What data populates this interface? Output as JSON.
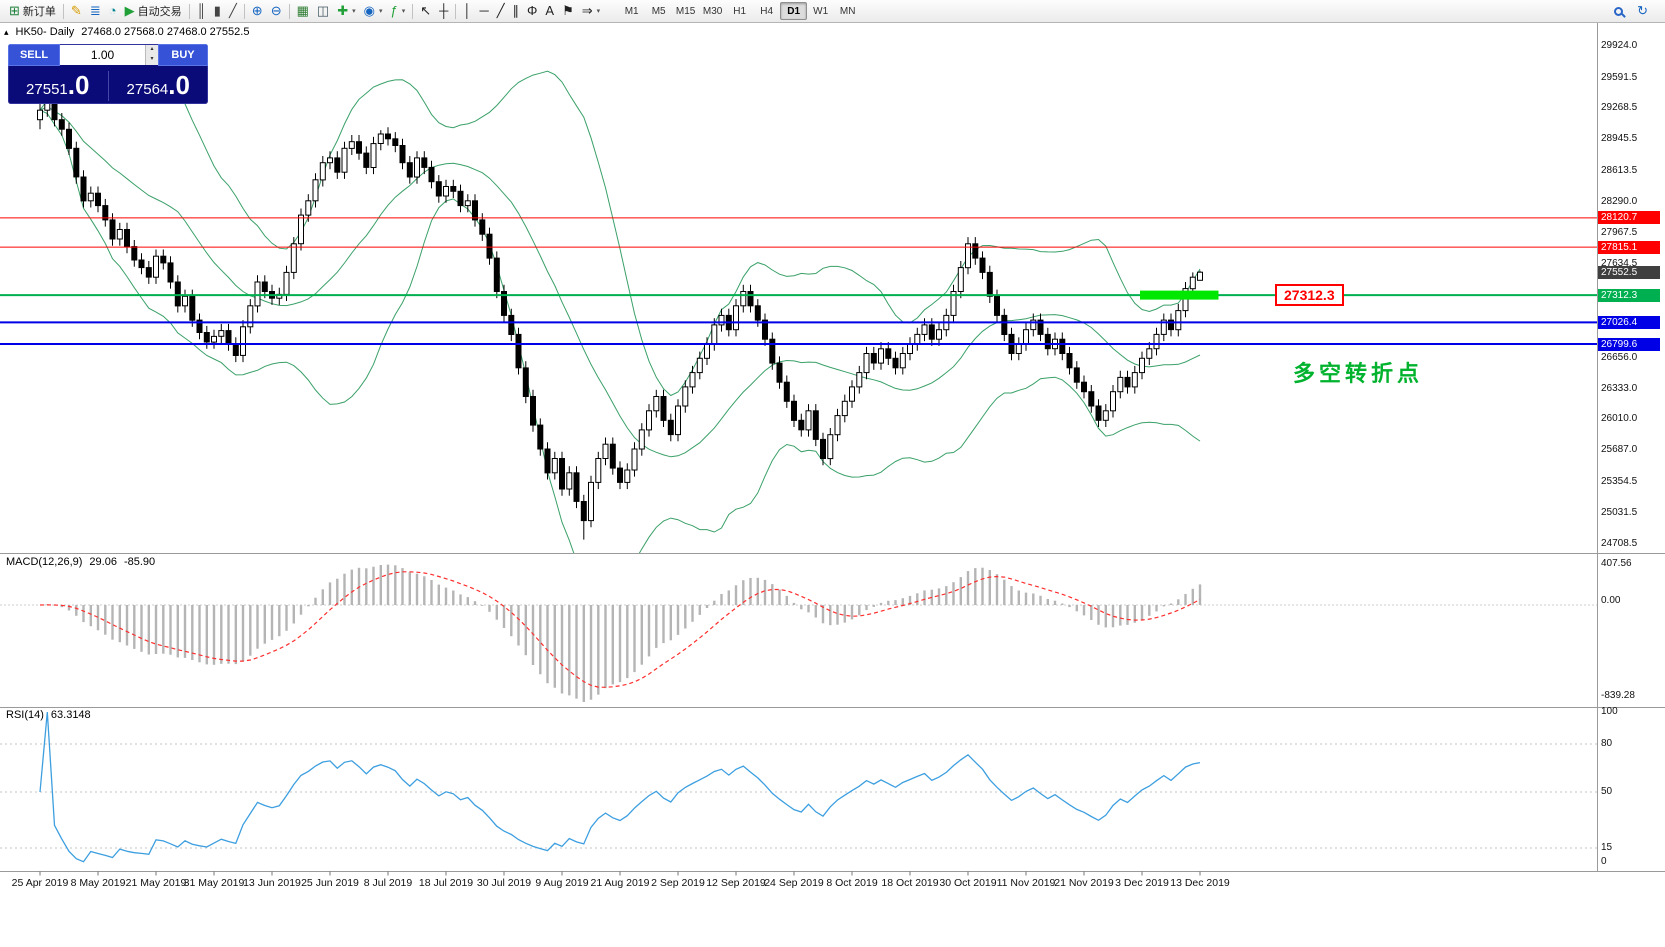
{
  "toolbar": {
    "dropdown_glyph": "▾",
    "buttons": [
      {
        "name": "new-order-button",
        "icon": "new-order-icon",
        "glyph": "⊞",
        "color": "#1a7f37",
        "label": "新订单"
      },
      {
        "sep": true
      },
      {
        "name": "metaeditor-button",
        "icon": "metaeditor-icon",
        "glyph": "✎",
        "color": "#d79b00"
      },
      {
        "name": "terminal-button",
        "icon": "terminal-icon",
        "glyph": "≣",
        "color": "#1565c0"
      },
      {
        "name": "tester-button",
        "icon": "tester-icon",
        "glyph": "◔",
        "color": "#00838f"
      },
      {
        "name": "autotrading-button",
        "icon": "autotrading-icon",
        "glyph": "▶",
        "color": "#21a038",
        "label": "自动交易"
      },
      {
        "sep": true
      },
      {
        "name": "chart-bars-button",
        "icon": "chart-bars-icon",
        "glyph": "║",
        "color": "#444444"
      },
      {
        "name": "chart-candles-button",
        "icon": "chart-candles-icon",
        "glyph": "▮",
        "color": "#444444"
      },
      {
        "name": "chart-line-button",
        "icon": "chart-line-icon",
        "glyph": "╱",
        "color": "#444444"
      },
      {
        "sep": true
      },
      {
        "name": "zoom-in-button",
        "icon": "zoom-in-icon",
        "glyph": "⊕",
        "color": "#1565c0"
      },
      {
        "name": "zoom-out-button",
        "icon": "zoom-out-icon",
        "glyph": "⊖",
        "color": "#1565c0"
      },
      {
        "sep": true
      },
      {
        "name": "tile-windows-button",
        "icon": "tile-windows-icon",
        "glyph": "▦",
        "color": "#2e7d32"
      },
      {
        "name": "cascade-windows-button",
        "icon": "cascade-windows-icon",
        "glyph": "◫",
        "color": "#455a64"
      },
      {
        "name": "new-chart-button",
        "icon": "new-chart-icon",
        "glyph": "✚",
        "color": "#21a038",
        "dropdown": true
      },
      {
        "name": "profiles-button",
        "icon": "profiles-icon",
        "glyph": "◉",
        "color": "#1565c0",
        "dropdown": true
      },
      {
        "name": "indicators-button",
        "icon": "indicators-icon",
        "glyph": "ƒ",
        "color": "#21a038",
        "dropdown": true
      },
      {
        "sep": true
      },
      {
        "name": "cursor-button",
        "icon": "cursor-icon",
        "glyph": "↖",
        "color": "#222222"
      },
      {
        "name": "crosshair-button",
        "icon": "crosshair-icon",
        "glyph": "┼",
        "color": "#222222"
      },
      {
        "sep": true
      },
      {
        "name": "vertical-line-button",
        "icon": "vertical-line-icon",
        "glyph": "│",
        "color": "#222222"
      },
      {
        "name": "horizontal-line-button",
        "icon": "horizontal-line-icon",
        "glyph": "─",
        "color": "#222222"
      },
      {
        "name": "trendline-button",
        "icon": "trendline-icon",
        "glyph": "╱",
        "color": "#222222"
      },
      {
        "name": "channel-button",
        "icon": "channel-icon",
        "glyph": "∥",
        "color": "#222222"
      },
      {
        "name": "fibonacci-button",
        "icon": "fibonacci-icon",
        "glyph": "Φ",
        "color": "#222222"
      },
      {
        "name": "text-button",
        "icon": "text-icon",
        "glyph": "A",
        "color": "#222222"
      },
      {
        "name": "label-button",
        "icon": "label-icon",
        "glyph": "⚑",
        "color": "#222222"
      },
      {
        "name": "arrows-button",
        "icon": "arrows-icon",
        "glyph": "⇒",
        "color": "#222222",
        "dropdown": true
      }
    ],
    "timeframes": [
      "M1",
      "M5",
      "M15",
      "M30",
      "H1",
      "H4",
      "D1",
      "W1",
      "MN"
    ],
    "active_timeframe": "D1",
    "buttons_right": [
      {
        "name": "search-button",
        "icon": "search-icon",
        "mag": true
      },
      {
        "name": "community-button",
        "icon": "community-icon",
        "glyph": "↻",
        "color": "#1565c0"
      }
    ]
  },
  "symbol_bar": {
    "collapse_icon": "▴",
    "title": "HK50- Daily",
    "ohlc": "27468.0 27568.0 27468.0 27552.5"
  },
  "trade_panel": {
    "sell_label": "SELL",
    "buy_label": "BUY",
    "volume": "1.00",
    "spinner_up": "▴",
    "spinner_down": "▾",
    "sell_price_int": "27551",
    "sell_price_frac": ".0",
    "buy_price_int": "27564",
    "buy_price_frac": ".0"
  },
  "annotations": {
    "price_flag": "27312.3",
    "turning_point": "多空转折点"
  },
  "chart_data": {
    "type": "candlestick",
    "title": "HK50 Daily",
    "ohlc_readout": "27468.0 27568.0 27468.0 27552.5",
    "candle_up_color": "#ffffff",
    "candle_down_color": "#000000",
    "candle_border_color": "#000000",
    "y_range_edges": [
      24610,
      30090
    ],
    "y_axis_labels": [
      "29924.0",
      "29591.5",
      "29268.5",
      "28945.5",
      "28613.5",
      "28290.0",
      "27967.5",
      "27634.5",
      "26656.0",
      "26333.0",
      "26010.0",
      "25687.0",
      "25354.5",
      "25031.5",
      "24708.5"
    ],
    "y_axis_tags": [
      {
        "text": "28120.7",
        "bg": "#ff0000"
      },
      {
        "text": "27815.1",
        "bg": "#ff0000"
      },
      {
        "text": "27552.5",
        "bg": "#3f3f3f"
      },
      {
        "text": "27312.3",
        "bg": "#00b050"
      },
      {
        "text": "27026.4",
        "bg": "#0000e6"
      },
      {
        "text": "26799.6",
        "bg": "#0000e6"
      }
    ],
    "x_axis_dates": [
      "25 Apr 2019",
      "8 May 2019",
      "21 May 2019",
      "31 May 2019",
      "13 Jun 2019",
      "25 Jun 2019",
      "8 Jul 2019",
      "18 Jul 2019",
      "30 Jul 2019",
      "9 Aug 2019",
      "21 Aug 2019",
      "2 Sep 2019",
      "12 Sep 2019",
      "24 Sep 2019",
      "8 Oct 2019",
      "18 Oct 2019",
      "30 Oct 2019",
      "11 Nov 2019",
      "21 Nov 2019",
      "3 Dec 2019",
      "13 Dec 2019"
    ],
    "overlays": {
      "bollinger_bands": {
        "period": 20,
        "deviation": 2,
        "color": "#3aa068"
      }
    },
    "horizontal_lines": [
      {
        "price": 28120.7,
        "color": "#ff0000",
        "width": 1
      },
      {
        "price": 27815.1,
        "color": "#ff0000",
        "width": 1
      },
      {
        "price": 27312.3,
        "color": "#00b050",
        "width": 2
      },
      {
        "price": 27026.4,
        "color": "#0000e6",
        "width": 2
      },
      {
        "price": 26799.6,
        "color": "#0000e6",
        "width": 2
      }
    ],
    "highlight_segment": {
      "price": 27312.3,
      "from_bar": 152,
      "to_bar": 162,
      "color": "#00e800"
    },
    "macd": {
      "label": "MACD(12,26,9)",
      "values": [
        "29.06",
        "-85.90"
      ],
      "axis_labels": [
        "407.56",
        "0.00",
        "-839.28"
      ],
      "histogram_color": "#b5b5b5",
      "signal_color": "#ff2e2e"
    },
    "rsi": {
      "label": "RSI(14)",
      "value": "63.3148",
      "axis_labels": [
        "100",
        "80",
        "50",
        "15",
        "0"
      ],
      "levels": [
        80,
        50,
        15
      ],
      "line_color": "#3d9fe0"
    },
    "candles_ohlc": [
      [
        29150,
        29330,
        29050,
        29250
      ],
      [
        29250,
        29390,
        29180,
        29320
      ],
      [
        29320,
        29390,
        29080,
        29150
      ],
      [
        29150,
        29220,
        28980,
        29050
      ],
      [
        29050,
        29120,
        28780,
        28850
      ],
      [
        28850,
        28920,
        28480,
        28550
      ],
      [
        28550,
        28620,
        28230,
        28300
      ],
      [
        28300,
        28450,
        28230,
        28380
      ],
      [
        28380,
        28450,
        28180,
        28250
      ],
      [
        28250,
        28320,
        28030,
        28100
      ],
      [
        28100,
        28170,
        27830,
        27900
      ],
      [
        27900,
        28070,
        27830,
        28000
      ],
      [
        28000,
        28070,
        27750,
        27820
      ],
      [
        27820,
        27890,
        27610,
        27680
      ],
      [
        27680,
        27750,
        27530,
        27600
      ],
      [
        27600,
        27670,
        27430,
        27500
      ],
      [
        27500,
        27790,
        27430,
        27720
      ],
      [
        27720,
        27790,
        27580,
        27650
      ],
      [
        27650,
        27720,
        27380,
        27450
      ],
      [
        27450,
        27520,
        27130,
        27200
      ],
      [
        27200,
        27370,
        27130,
        27300
      ],
      [
        27300,
        27370,
        26980,
        27050
      ],
      [
        27050,
        27120,
        26850,
        26920
      ],
      [
        26920,
        26990,
        26750,
        26820
      ],
      [
        26820,
        26950,
        26750,
        26880
      ],
      [
        26880,
        27010,
        26810,
        26940
      ],
      [
        26940,
        27010,
        26730,
        26800
      ],
      [
        26800,
        26870,
        26610,
        26680
      ],
      [
        26680,
        27050,
        26610,
        26980
      ],
      [
        26980,
        27270,
        26910,
        27200
      ],
      [
        27200,
        27520,
        27130,
        27450
      ],
      [
        27450,
        27520,
        27280,
        27350
      ],
      [
        27350,
        27420,
        27210,
        27280
      ],
      [
        27280,
        27390,
        27210,
        27320
      ],
      [
        27320,
        27620,
        27250,
        27550
      ],
      [
        27550,
        27920,
        27480,
        27850
      ],
      [
        27850,
        28220,
        27780,
        28150
      ],
      [
        28150,
        28370,
        28080,
        28300
      ],
      [
        28300,
        28590,
        28230,
        28520
      ],
      [
        28520,
        28770,
        28450,
        28700
      ],
      [
        28700,
        28820,
        28630,
        28750
      ],
      [
        28750,
        28820,
        28530,
        28600
      ],
      [
        28600,
        28920,
        28530,
        28850
      ],
      [
        28850,
        28990,
        28780,
        28920
      ],
      [
        28920,
        28990,
        28730,
        28800
      ],
      [
        28800,
        28870,
        28580,
        28650
      ],
      [
        28650,
        28970,
        28580,
        28900
      ],
      [
        28900,
        29040,
        28830,
        29000
      ],
      [
        29000,
        29070,
        28880,
        28950
      ],
      [
        28950,
        29020,
        28810,
        28880
      ],
      [
        28880,
        28950,
        28630,
        28700
      ],
      [
        28700,
        28770,
        28480,
        28550
      ],
      [
        28550,
        28820,
        28480,
        28750
      ],
      [
        28750,
        28820,
        28580,
        28650
      ],
      [
        28650,
        28720,
        28430,
        28500
      ],
      [
        28500,
        28570,
        28280,
        28350
      ],
      [
        28350,
        28520,
        28280,
        28450
      ],
      [
        28450,
        28520,
        28330,
        28400
      ],
      [
        28400,
        28470,
        28180,
        28250
      ],
      [
        28250,
        28370,
        28180,
        28300
      ],
      [
        28300,
        28370,
        28030,
        28100
      ],
      [
        28100,
        28170,
        27880,
        27950
      ],
      [
        27950,
        28020,
        27630,
        27700
      ],
      [
        27700,
        27770,
        27280,
        27350
      ],
      [
        27350,
        27420,
        27030,
        27100
      ],
      [
        27100,
        27170,
        26830,
        26900
      ],
      [
        26900,
        26970,
        26480,
        26550
      ],
      [
        26550,
        26620,
        26180,
        26250
      ],
      [
        26250,
        26320,
        25880,
        25950
      ],
      [
        25950,
        26020,
        25630,
        25700
      ],
      [
        25700,
        25770,
        25380,
        25450
      ],
      [
        25450,
        25670,
        25380,
        25600
      ],
      [
        25600,
        25670,
        25210,
        25280
      ],
      [
        25280,
        25520,
        25210,
        25450
      ],
      [
        25450,
        25520,
        25080,
        25150
      ],
      [
        25150,
        25220,
        24750,
        24950
      ],
      [
        24950,
        25420,
        24880,
        25350
      ],
      [
        25350,
        25670,
        25280,
        25600
      ],
      [
        25600,
        25820,
        25530,
        25750
      ],
      [
        25750,
        25820,
        25430,
        25500
      ],
      [
        25500,
        25570,
        25280,
        25350
      ],
      [
        25350,
        25550,
        25280,
        25480
      ],
      [
        25480,
        25770,
        25410,
        25700
      ],
      [
        25700,
        25970,
        25630,
        25900
      ],
      [
        25900,
        26170,
        25830,
        26100
      ],
      [
        26100,
        26320,
        26030,
        26250
      ],
      [
        26250,
        26320,
        25930,
        26000
      ],
      [
        26000,
        26070,
        25780,
        25850
      ],
      [
        25850,
        26220,
        25780,
        26150
      ],
      [
        26150,
        26420,
        26080,
        26350
      ],
      [
        26350,
        26570,
        26280,
        26500
      ],
      [
        26500,
        26720,
        26430,
        26650
      ],
      [
        26650,
        26870,
        26580,
        26800
      ],
      [
        26800,
        27070,
        26730,
        27000
      ],
      [
        27000,
        27170,
        26930,
        27100
      ],
      [
        27100,
        27170,
        26880,
        26950
      ],
      [
        26950,
        27270,
        26880,
        27200
      ],
      [
        27200,
        27420,
        27130,
        27350
      ],
      [
        27350,
        27420,
        27130,
        27200
      ],
      [
        27200,
        27270,
        26980,
        27050
      ],
      [
        27050,
        27120,
        26780,
        26850
      ],
      [
        26850,
        26920,
        26530,
        26600
      ],
      [
        26600,
        26670,
        26330,
        26400
      ],
      [
        26400,
        26470,
        26130,
        26200
      ],
      [
        26200,
        26270,
        25930,
        26000
      ],
      [
        26000,
        26070,
        25830,
        25900
      ],
      [
        25900,
        26170,
        25830,
        26100
      ],
      [
        26100,
        26170,
        25730,
        25800
      ],
      [
        25800,
        25870,
        25530,
        25600
      ],
      [
        25600,
        25920,
        25530,
        25850
      ],
      [
        25850,
        26120,
        25780,
        26050
      ],
      [
        26050,
        26270,
        25980,
        26200
      ],
      [
        26200,
        26420,
        26130,
        26350
      ],
      [
        26350,
        26570,
        26280,
        26500
      ],
      [
        26500,
        26770,
        26430,
        26700
      ],
      [
        26700,
        26770,
        26530,
        26600
      ],
      [
        26600,
        26820,
        26530,
        26750
      ],
      [
        26750,
        26820,
        26580,
        26650
      ],
      [
        26650,
        26720,
        26480,
        26550
      ],
      [
        26550,
        26770,
        26480,
        26700
      ],
      [
        26700,
        26870,
        26630,
        26800
      ],
      [
        26800,
        26970,
        26730,
        26900
      ],
      [
        26900,
        27070,
        26830,
        27000
      ],
      [
        27000,
        27070,
        26780,
        26850
      ],
      [
        26850,
        27020,
        26780,
        26950
      ],
      [
        26950,
        27170,
        26880,
        27100
      ],
      [
        27100,
        27420,
        27030,
        27350
      ],
      [
        27350,
        27670,
        27280,
        27600
      ],
      [
        27600,
        27920,
        27530,
        27850
      ],
      [
        27850,
        27920,
        27630,
        27700
      ],
      [
        27700,
        27770,
        27480,
        27550
      ],
      [
        27550,
        27620,
        27230,
        27300
      ],
      [
        27300,
        27370,
        27030,
        27100
      ],
      [
        27100,
        27170,
        26830,
        26900
      ],
      [
        26900,
        26970,
        26630,
        26700
      ],
      [
        26700,
        26870,
        26630,
        26800
      ],
      [
        26800,
        27020,
        26730,
        26950
      ],
      [
        26950,
        27120,
        26880,
        27050
      ],
      [
        27050,
        27120,
        26830,
        26900
      ],
      [
        26900,
        26970,
        26680,
        26750
      ],
      [
        26750,
        26920,
        26680,
        26850
      ],
      [
        26850,
        26920,
        26630,
        26700
      ],
      [
        26700,
        26770,
        26480,
        26550
      ],
      [
        26550,
        26620,
        26330,
        26400
      ],
      [
        26400,
        26470,
        26230,
        26300
      ],
      [
        26300,
        26370,
        26080,
        26150
      ],
      [
        26150,
        26220,
        25930,
        26000
      ],
      [
        26000,
        26170,
        25930,
        26100
      ],
      [
        26100,
        26370,
        26030,
        26300
      ],
      [
        26300,
        26520,
        26230,
        26450
      ],
      [
        26450,
        26520,
        26280,
        26350
      ],
      [
        26350,
        26570,
        26280,
        26500
      ],
      [
        26500,
        26720,
        26430,
        26650
      ],
      [
        26650,
        26820,
        26580,
        26750
      ],
      [
        26750,
        26970,
        26680,
        26900
      ],
      [
        26900,
        27120,
        26830,
        27050
      ],
      [
        27050,
        27120,
        26880,
        26950
      ],
      [
        26950,
        27220,
        26880,
        27150
      ],
      [
        27150,
        27450,
        27080,
        27380
      ],
      [
        27380,
        27550,
        27310,
        27500
      ],
      [
        27468,
        27568,
        27468,
        27552.5
      ]
    ]
  }
}
